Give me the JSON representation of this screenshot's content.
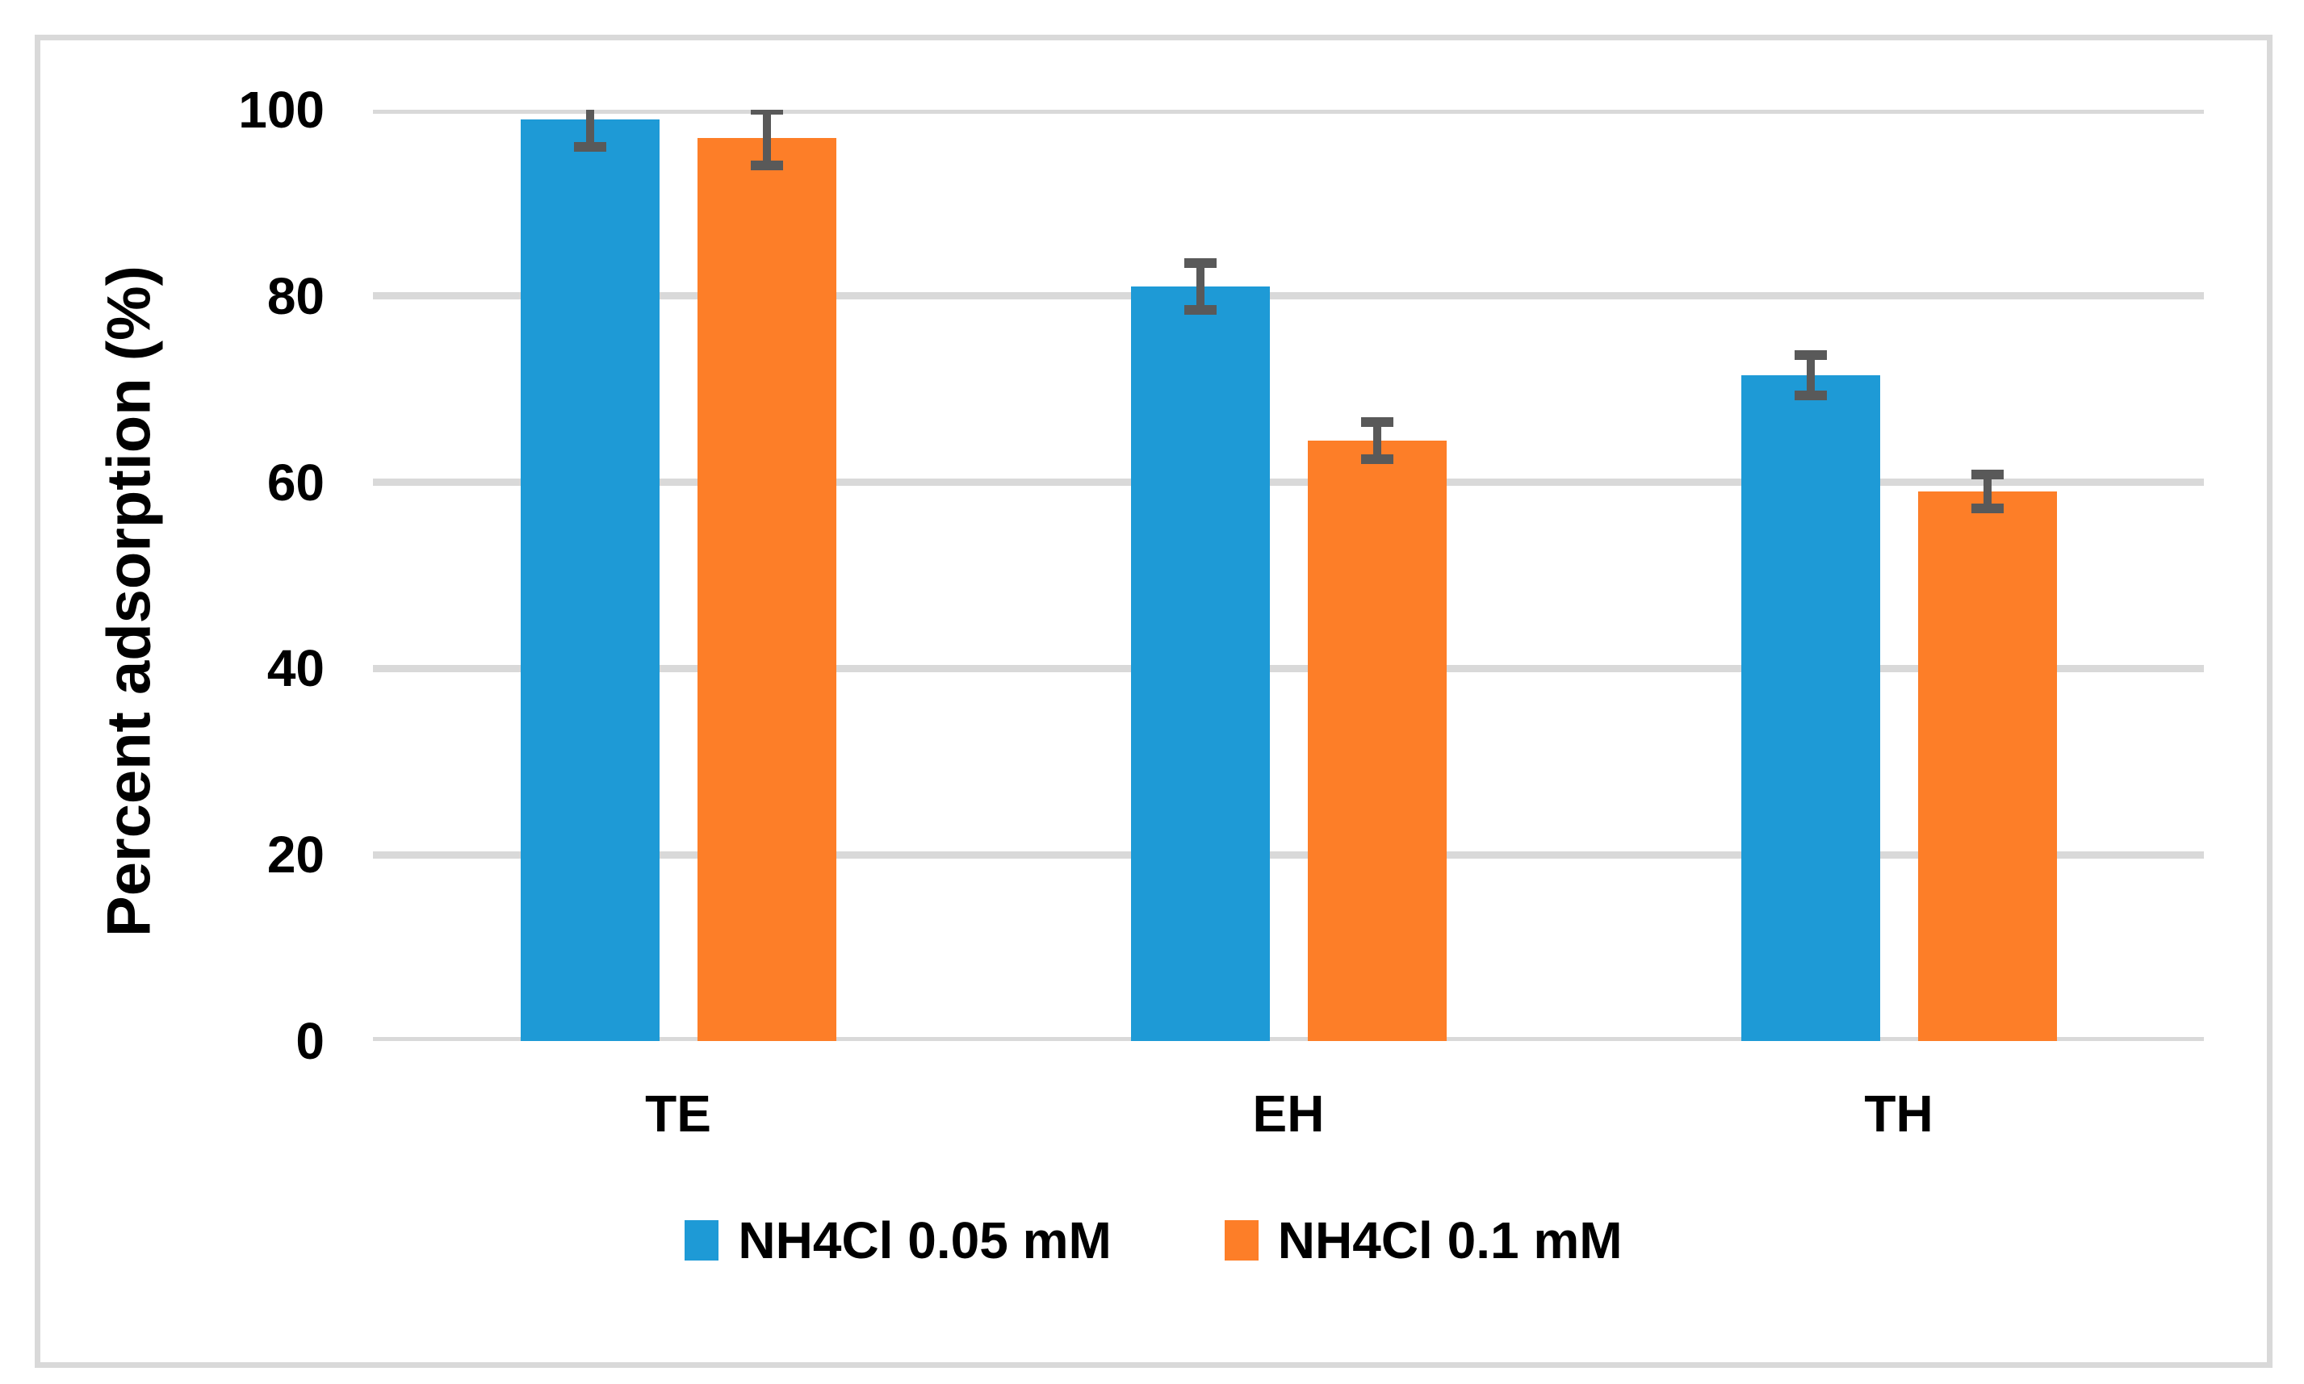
{
  "chart_data": {
    "type": "bar",
    "title": "",
    "xlabel": "",
    "ylabel": "Percent adsorption (%)",
    "categories": [
      "TE",
      "EH",
      "TH"
    ],
    "series": [
      {
        "name": "NH4Cl 0.05 mM",
        "color": "#1e9ad6",
        "values": [
          99,
          81,
          71.5
        ],
        "errors": [
          3,
          2.5,
          2.2
        ]
      },
      {
        "name": "NH4Cl 0.1 mM",
        "color": "#fd7e28",
        "values": [
          97,
          64.5,
          59
        ],
        "errors": [
          3,
          2,
          1.8
        ]
      }
    ],
    "ylim": [
      0,
      100
    ],
    "yticks": [
      0,
      20,
      40,
      60,
      80,
      100
    ],
    "grid": true,
    "legend_position": "bottom",
    "colors": {
      "gridline": "#d9d9d9",
      "axis_line": "#d9d9d9",
      "figure_border": "#d9d9d9",
      "error_bar": "#595959",
      "text": "#000000",
      "background": "#ffffff"
    }
  }
}
